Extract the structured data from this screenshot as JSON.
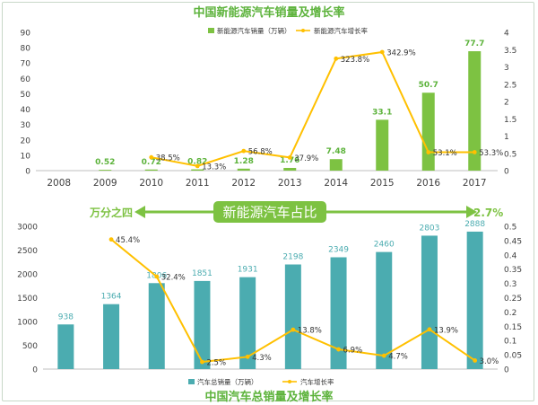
{
  "colors": {
    "green": "#7dc242",
    "green_title": "#5db33c",
    "teal": "#4bacb0",
    "yellow": "#ffc000",
    "axis_text": "#404040",
    "grid": "#e6e6e6",
    "share_band": "#7dc242"
  },
  "chart_data": [
    {
      "type": "bar",
      "title": "中国新能源汽车销量及增长率",
      "categories": [
        "2008",
        "2009",
        "2010",
        "2011",
        "2012",
        "2013",
        "2014",
        "2015",
        "2016",
        "2017"
      ],
      "series": [
        {
          "name": "新能源汽车销量（万辆）",
          "type": "bar",
          "axis": "left",
          "values": [
            0,
            0.52,
            0.72,
            0.82,
            1.28,
            1.76,
            7.48,
            33.1,
            50.7,
            77.7
          ],
          "labels": [
            "",
            "0.52",
            "0.72",
            "0.82",
            "1.28",
            "1.76",
            "7.48",
            "33.1",
            "50.7",
            "77.7"
          ]
        },
        {
          "name": "新能源汽车增长率",
          "type": "line",
          "axis": "right",
          "values": [
            null,
            null,
            0.385,
            0.133,
            0.568,
            0.379,
            3.238,
            3.429,
            0.531,
            0.533
          ],
          "labels": [
            "",
            "",
            "38.5%",
            "13.3%",
            "56.8%",
            "37.9%",
            "323.8%",
            "342.9%",
            "53.1%",
            "53.3%"
          ]
        }
      ],
      "y_left": {
        "ylim": [
          0,
          90
        ],
        "ticks": [
          "0",
          "10",
          "20",
          "30",
          "40",
          "50",
          "60",
          "70",
          "80",
          "90"
        ]
      },
      "y_right": {
        "ylim": [
          0,
          4
        ],
        "ticks": [
          "0",
          "0.5",
          "1",
          "1.5",
          "2",
          "2.5",
          "3",
          "3.5",
          "4"
        ]
      },
      "legend": "top-right",
      "grid": false
    },
    {
      "type": "bar",
      "title": "中国汽车总销量及增长率",
      "categories": [
        "2008",
        "2009",
        "2010",
        "2011",
        "2012",
        "2013",
        "2014",
        "2015",
        "2016",
        "2017"
      ],
      "series": [
        {
          "name": "汽车总销量（万辆）",
          "type": "bar",
          "axis": "left",
          "values": [
            938,
            1364,
            1806,
            1851,
            1931,
            2198,
            2349,
            2460,
            2803,
            2888
          ],
          "labels": [
            "938",
            "1364",
            "1806",
            "1851",
            "1931",
            "2198",
            "2349",
            "2460",
            "2803",
            "2888"
          ]
        },
        {
          "name": "汽车增长率",
          "type": "line",
          "axis": "right",
          "values": [
            null,
            0.454,
            0.324,
            0.025,
            0.043,
            0.138,
            0.069,
            0.047,
            0.139,
            0.03
          ],
          "labels": [
            "",
            "45.4%",
            "32.4%",
            "2.5%",
            "4.3%",
            "13.8%",
            "6.9%",
            "4.7%",
            "13.9%",
            "3.0%"
          ]
        }
      ],
      "y_left": {
        "ylim": [
          0,
          3000
        ],
        "ticks": [
          "0",
          "500",
          "1000",
          "1500",
          "2000",
          "2500",
          "3000"
        ]
      },
      "y_right": {
        "ylim": [
          0,
          0.5
        ],
        "ticks": [
          "0",
          "0.05",
          "0.1",
          "0.15",
          "0.2",
          "0.25",
          "0.3",
          "0.35",
          "0.4",
          "0.45",
          "0.5"
        ]
      },
      "legend": "bottom-center",
      "grid": false
    }
  ],
  "share": {
    "title": "新能源汽车占比",
    "left_label": "万分之四",
    "right_label": "2.7%"
  }
}
